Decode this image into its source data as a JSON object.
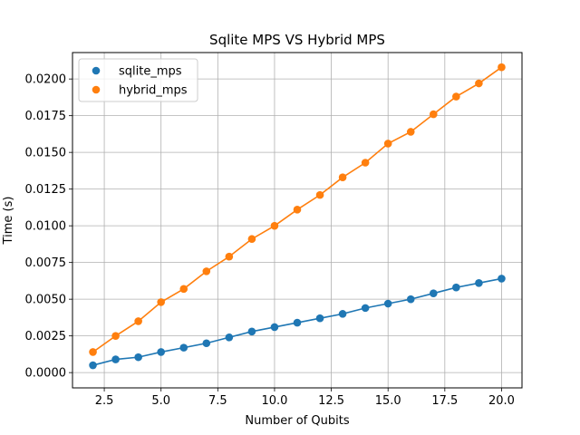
{
  "chart_data": {
    "type": "line",
    "title": "Sqlite MPS VS Hybrid MPS",
    "xlabel": "Number of Qubits",
    "ylabel": "Time (s)",
    "xlim": [
      1.1,
      20.9
    ],
    "ylim": [
      -0.00104,
      0.0218
    ],
    "xticks": [
      2.5,
      5.0,
      7.5,
      10.0,
      12.5,
      15.0,
      17.5,
      20.0
    ],
    "xtick_labels": [
      "2.5",
      "5.0",
      "7.5",
      "10.0",
      "12.5",
      "15.0",
      "17.5",
      "20.0"
    ],
    "yticks": [
      0.0,
      0.0025,
      0.005,
      0.0075,
      0.01,
      0.0125,
      0.015,
      0.0175,
      0.02
    ],
    "ytick_labels": [
      "0.0000",
      "0.0025",
      "0.0050",
      "0.0075",
      "0.0100",
      "0.0125",
      "0.0150",
      "0.0175",
      "0.0200"
    ],
    "grid": true,
    "legend_position": "top-left",
    "x": [
      2,
      3,
      4,
      5,
      6,
      7,
      8,
      9,
      10,
      11,
      12,
      13,
      14,
      15,
      16,
      17,
      18,
      19,
      20
    ],
    "series": [
      {
        "name": "sqlite_mps",
        "color": "#1f77b4",
        "values": [
          0.0005,
          0.0009,
          0.00105,
          0.0014,
          0.0017,
          0.002,
          0.0024,
          0.0028,
          0.0031,
          0.0034,
          0.0037,
          0.004,
          0.0044,
          0.0047,
          0.005,
          0.0054,
          0.0058,
          0.0061,
          0.0064
        ]
      },
      {
        "name": "hybrid_mps",
        "color": "#ff7f0e",
        "values": [
          0.0014,
          0.0025,
          0.0035,
          0.0048,
          0.0057,
          0.0069,
          0.0079,
          0.0091,
          0.01,
          0.0111,
          0.0121,
          0.0133,
          0.0143,
          0.0156,
          0.0164,
          0.0176,
          0.0188,
          0.0197,
          0.0208
        ]
      }
    ]
  }
}
